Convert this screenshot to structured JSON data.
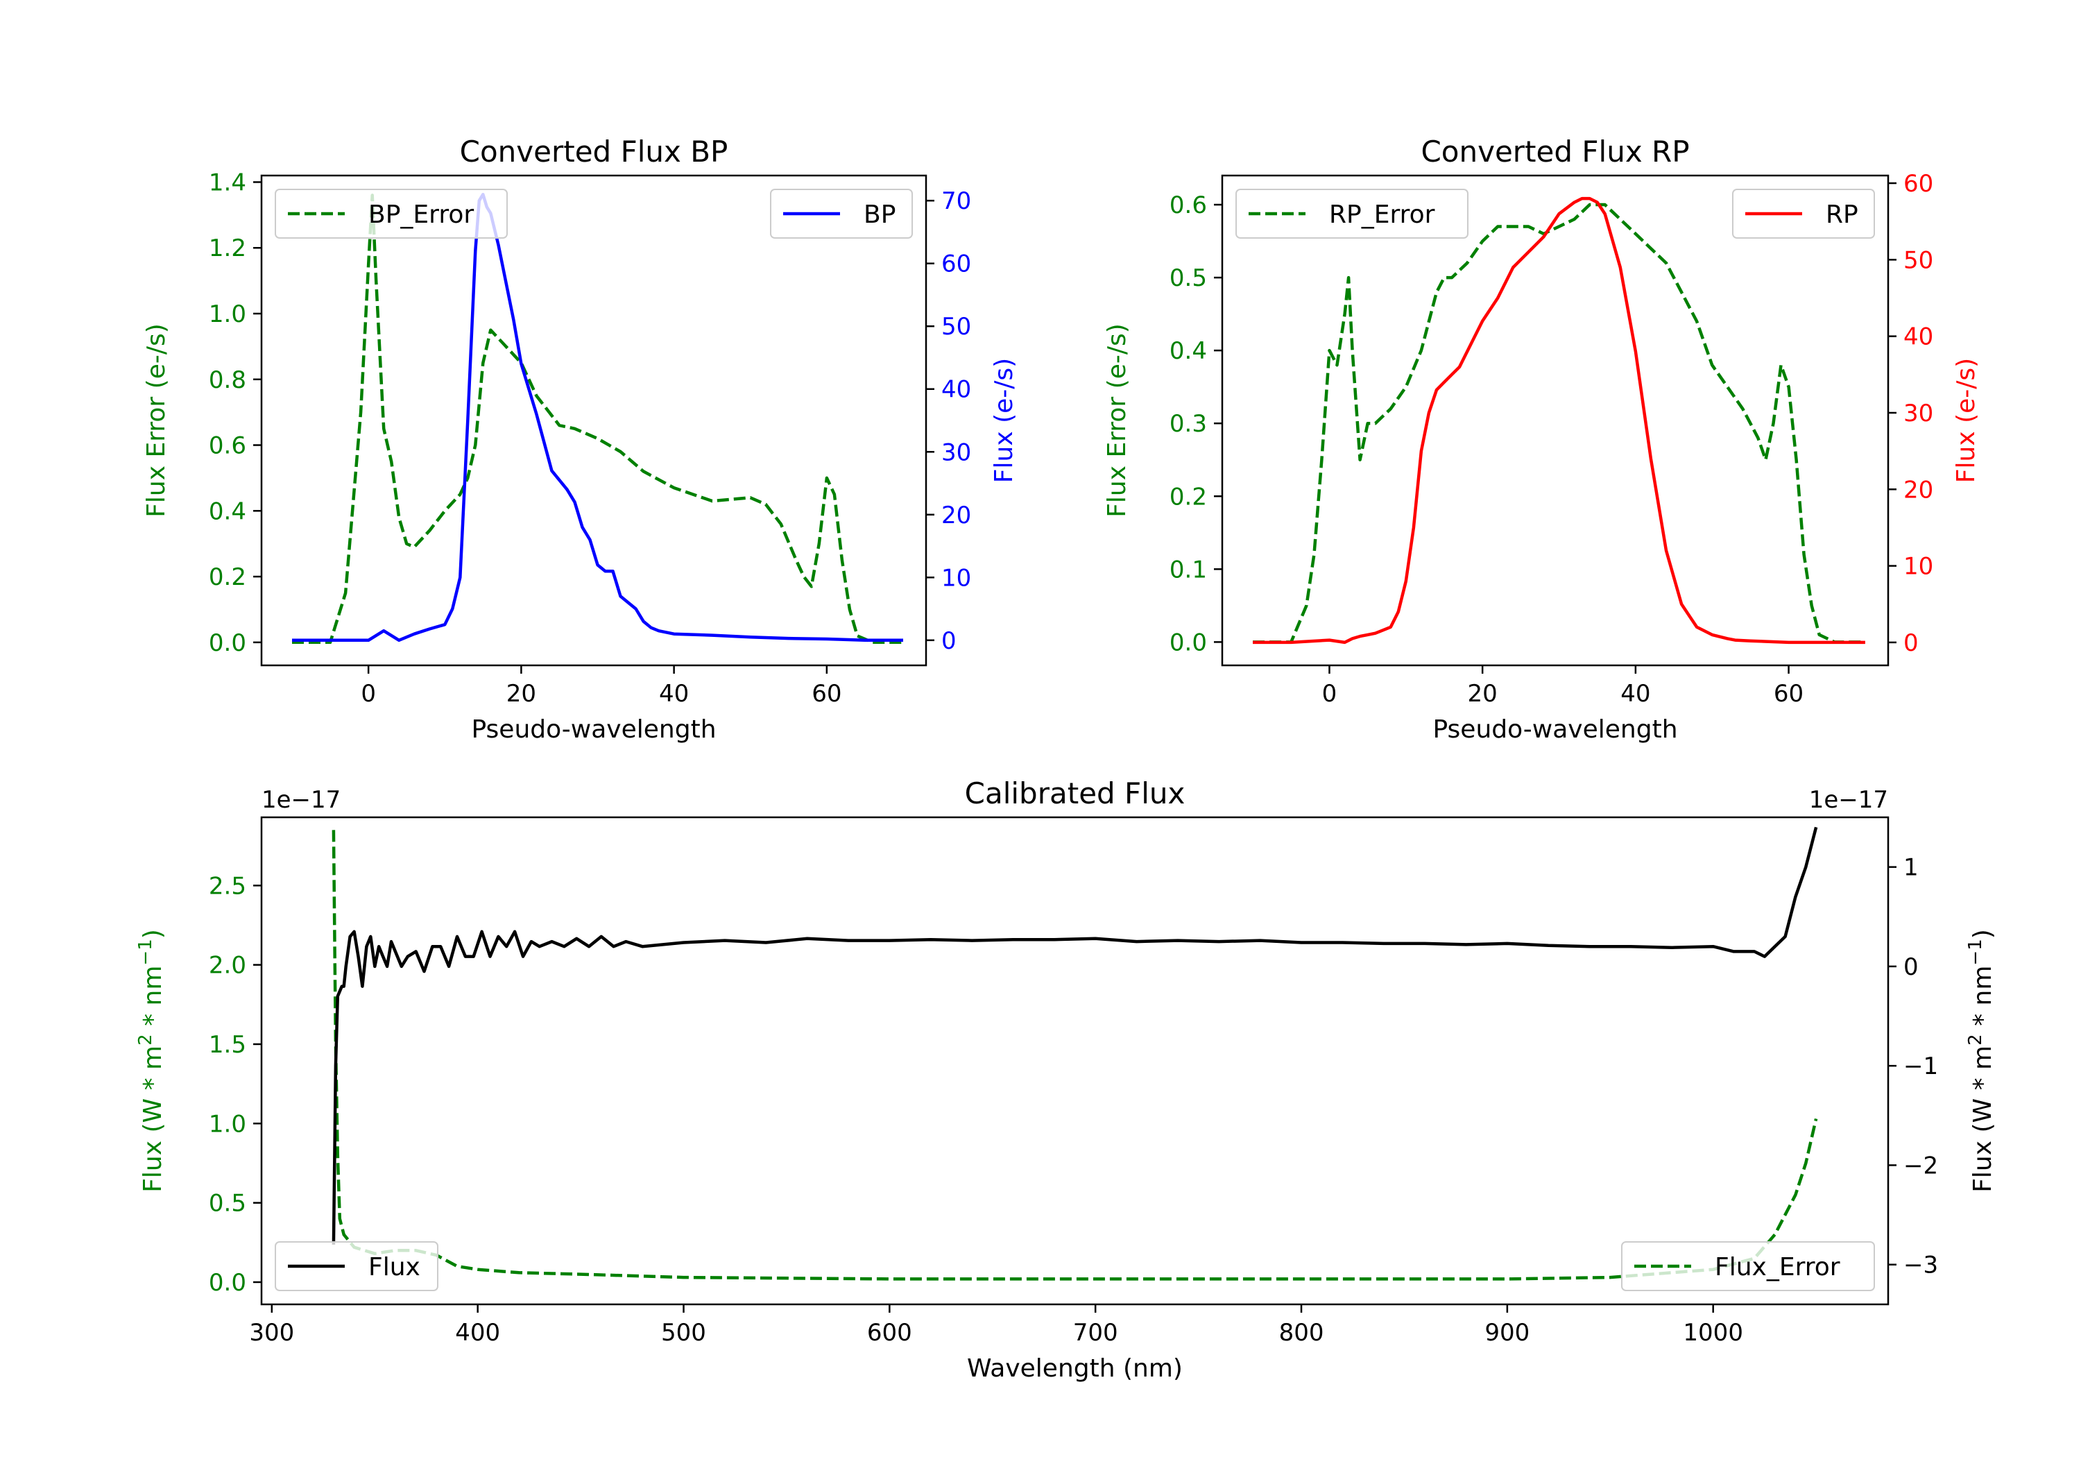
{
  "figure": {
    "background": "#ffffff"
  },
  "colors": {
    "green": "#008000",
    "blue": "#0000ff",
    "red": "#ff0000",
    "black": "#000000"
  },
  "chart_data": [
    {
      "id": "bp",
      "type": "line",
      "title": "Converted Flux BP",
      "xlabel": "Pseudo-wavelength",
      "ylabel_left": "Flux Error (e-/s)",
      "ylabel_right": "Flux (e-/s)",
      "xlim": [
        -14,
        73
      ],
      "ylim_left": [
        -0.07,
        1.42
      ],
      "ylim_right": [
        -4,
        74
      ],
      "xticks": [
        0,
        20,
        40,
        60
      ],
      "yticks_left": [
        0.0,
        0.2,
        0.4,
        0.6,
        0.8,
        1.0,
        1.2,
        1.4
      ],
      "yticks_left_labels": [
        "0.0",
        "0.2",
        "0.4",
        "0.6",
        "0.8",
        "1.0",
        "1.2",
        "1.4"
      ],
      "yticks_right": [
        0,
        10,
        20,
        30,
        40,
        50,
        60,
        70
      ],
      "yticks_right_labels": [
        "0",
        "10",
        "20",
        "30",
        "40",
        "50",
        "60",
        "70"
      ],
      "legend_left": {
        "label": "BP_Error",
        "position": "upper-left",
        "style": "dashed",
        "color": "#008000"
      },
      "legend_right": {
        "label": "BP",
        "position": "upper-right",
        "style": "solid",
        "color": "#0000ff"
      },
      "series": [
        {
          "name": "BP_Error",
          "axis": "left",
          "color": "#008000",
          "style": "dashed",
          "x": [
            -10,
            -5,
            -3,
            -1,
            0,
            0.5,
            1,
            2,
            3,
            4,
            5,
            6,
            8,
            10,
            12,
            13,
            14,
            15,
            16,
            18,
            20,
            22,
            25,
            27,
            30,
            33,
            36,
            40,
            45,
            50,
            52,
            54,
            56,
            57,
            58,
            59,
            60,
            61,
            62,
            63,
            64,
            66,
            70
          ],
          "y": [
            0.0,
            0.0,
            0.15,
            0.7,
            1.15,
            1.36,
            1.1,
            0.65,
            0.55,
            0.38,
            0.3,
            0.29,
            0.34,
            0.4,
            0.45,
            0.5,
            0.6,
            0.85,
            0.95,
            0.9,
            0.85,
            0.75,
            0.66,
            0.65,
            0.62,
            0.58,
            0.52,
            0.47,
            0.43,
            0.44,
            0.42,
            0.36,
            0.25,
            0.2,
            0.17,
            0.3,
            0.5,
            0.45,
            0.25,
            0.1,
            0.02,
            0.0,
            0.0
          ]
        },
        {
          "name": "BP",
          "axis": "right",
          "color": "#0000ff",
          "style": "solid",
          "x": [
            -10,
            -5,
            0,
            2,
            4,
            6,
            8,
            10,
            11,
            12,
            13,
            14,
            14.5,
            15,
            15.5,
            16,
            17,
            18,
            19,
            20,
            22,
            24,
            26,
            27,
            28,
            29,
            30,
            31,
            32,
            33,
            34,
            35,
            36,
            37,
            38,
            40,
            45,
            50,
            55,
            60,
            65,
            70
          ],
          "y": [
            0,
            0,
            0,
            1.5,
            0,
            1,
            1.8,
            2.5,
            5,
            10,
            35,
            62,
            70,
            71,
            69,
            68,
            63,
            57,
            51,
            44,
            36,
            27,
            24,
            22,
            18,
            16,
            12,
            11,
            11,
            7,
            6,
            5,
            3,
            2,
            1.5,
            1,
            0.8,
            0.5,
            0.3,
            0.2,
            0,
            0
          ]
        }
      ]
    },
    {
      "id": "rp",
      "type": "line",
      "title": "Converted Flux RP",
      "xlabel": "Pseudo-wavelength",
      "ylabel_left": "Flux Error (e-/s)",
      "ylabel_right": "Flux (e-/s)",
      "xlim": [
        -14,
        73
      ],
      "ylim_left": [
        -0.032,
        0.64
      ],
      "ylim_right": [
        -3,
        61
      ],
      "xticks": [
        0,
        20,
        40,
        60
      ],
      "yticks_left": [
        0.0,
        0.1,
        0.2,
        0.3,
        0.4,
        0.5,
        0.6
      ],
      "yticks_left_labels": [
        "0.0",
        "0.1",
        "0.2",
        "0.3",
        "0.4",
        "0.5",
        "0.6"
      ],
      "yticks_right": [
        0,
        10,
        20,
        30,
        40,
        50,
        60
      ],
      "yticks_right_labels": [
        "0",
        "10",
        "20",
        "30",
        "40",
        "50",
        "60"
      ],
      "legend_left": {
        "label": "RP_Error",
        "position": "upper-left",
        "style": "dashed",
        "color": "#008000"
      },
      "legend_right": {
        "label": "RP",
        "position": "upper-right",
        "style": "solid",
        "color": "#ff0000"
      },
      "series": [
        {
          "name": "RP_Error",
          "axis": "left",
          "color": "#008000",
          "style": "dashed",
          "x": [
            -10,
            -5,
            -3,
            -2,
            -1,
            0,
            1,
            2,
            2.5,
            3,
            4,
            5,
            6,
            8,
            10,
            12,
            14,
            15,
            16,
            18,
            20,
            22,
            24,
            26,
            28,
            30,
            32,
            34,
            36,
            38,
            40,
            42,
            44,
            46,
            48,
            50,
            52,
            54,
            55,
            56,
            57,
            58,
            59,
            60,
            61,
            62,
            63,
            64,
            66,
            70
          ],
          "y": [
            0.0,
            0.0,
            0.05,
            0.12,
            0.25,
            0.4,
            0.38,
            0.45,
            0.5,
            0.4,
            0.25,
            0.3,
            0.3,
            0.32,
            0.35,
            0.4,
            0.48,
            0.5,
            0.5,
            0.52,
            0.55,
            0.57,
            0.57,
            0.57,
            0.56,
            0.57,
            0.58,
            0.6,
            0.6,
            0.58,
            0.56,
            0.54,
            0.52,
            0.48,
            0.44,
            0.38,
            0.35,
            0.32,
            0.3,
            0.28,
            0.25,
            0.3,
            0.38,
            0.35,
            0.25,
            0.12,
            0.05,
            0.01,
            0.0,
            0.0
          ]
        },
        {
          "name": "RP",
          "axis": "right",
          "color": "#ff0000",
          "style": "solid",
          "x": [
            -10,
            -5,
            0,
            2,
            3,
            4,
            5,
            6,
            7,
            8,
            9,
            10,
            11,
            12,
            13,
            14,
            15,
            16,
            17,
            18,
            19,
            20,
            22,
            24,
            26,
            28,
            30,
            32,
            33,
            34,
            35,
            36,
            38,
            40,
            42,
            44,
            46,
            48,
            50,
            52,
            53,
            55,
            60,
            65,
            70
          ],
          "y": [
            0,
            0,
            0.3,
            0,
            0.5,
            0.8,
            1,
            1.2,
            1.6,
            2,
            4,
            8,
            15,
            25,
            30,
            33,
            34,
            35,
            36,
            38,
            40,
            42,
            45,
            49,
            51,
            53,
            56,
            57.5,
            58,
            58,
            57.5,
            56,
            49,
            38,
            24,
            12,
            5,
            2,
            1,
            0.5,
            0.3,
            0.2,
            0,
            0,
            0
          ]
        }
      ]
    },
    {
      "id": "cal",
      "type": "line",
      "title": "Calibrated Flux",
      "xlabel": "Wavelength (nm)",
      "ylabel_left_parts": [
        "Flux (W * m",
        "2",
        " * nm",
        "−1",
        ")"
      ],
      "ylabel_right_parts": [
        "Flux (W * m",
        "2",
        " * nm",
        "−1",
        ")"
      ],
      "offset_left": "1e−17",
      "offset_right": "1e−17",
      "xlim": [
        295,
        1085
      ],
      "ylim_left": [
        -0.14,
        2.93
      ],
      "ylim_right": [
        -3.4,
        1.5
      ],
      "xticks": [
        300,
        400,
        500,
        600,
        700,
        800,
        900,
        1000
      ],
      "yticks_left": [
        0.0,
        0.5,
        1.0,
        1.5,
        2.0,
        2.5
      ],
      "yticks_left_labels": [
        "0.0",
        "0.5",
        "1.0",
        "1.5",
        "2.0",
        "2.5"
      ],
      "yticks_right": [
        -3,
        -2,
        -1,
        0,
        1
      ],
      "yticks_right_labels": [
        "−3",
        "−2",
        "−1",
        "0",
        "1"
      ],
      "legend_left": {
        "label": "Flux",
        "position": "lower-left",
        "style": "solid",
        "color": "#000000"
      },
      "legend_right": {
        "label": "Flux_Error",
        "position": "lower-right",
        "style": "dashed",
        "color": "#008000"
      },
      "series": [
        {
          "name": "Flux_Error",
          "axis": "left",
          "color": "#008000",
          "style": "dashed",
          "x": [
            330,
            331,
            332,
            333,
            335,
            340,
            350,
            360,
            370,
            380,
            390,
            400,
            420,
            450,
            500,
            600,
            700,
            800,
            900,
            950,
            1000,
            1020,
            1030,
            1040,
            1045,
            1050
          ],
          "y": [
            2.85,
            1.5,
            0.8,
            0.4,
            0.3,
            0.22,
            0.18,
            0.2,
            0.2,
            0.17,
            0.1,
            0.08,
            0.06,
            0.05,
            0.03,
            0.02,
            0.02,
            0.02,
            0.02,
            0.03,
            0.08,
            0.15,
            0.3,
            0.55,
            0.75,
            1.03
          ]
        },
        {
          "name": "Flux",
          "axis": "right",
          "color": "#000000",
          "style": "solid",
          "x": [
            330,
            331,
            332,
            333,
            334,
            335,
            336,
            338,
            340,
            342,
            344,
            346,
            348,
            350,
            352,
            354,
            356,
            358,
            360,
            363,
            366,
            370,
            374,
            378,
            382,
            386,
            390,
            394,
            398,
            402,
            406,
            410,
            414,
            418,
            422,
            426,
            430,
            436,
            442,
            448,
            454,
            460,
            466,
            472,
            480,
            490,
            500,
            520,
            540,
            560,
            580,
            600,
            620,
            640,
            660,
            680,
            700,
            720,
            740,
            760,
            780,
            800,
            820,
            840,
            860,
            880,
            900,
            920,
            940,
            960,
            980,
            1000,
            1010,
            1020,
            1025,
            1030,
            1035,
            1040,
            1045,
            1050
          ],
          "y": [
            -2.8,
            -1,
            -0.3,
            -0.25,
            -0.2,
            -0.2,
            0.0,
            0.3,
            0.35,
            0.1,
            -0.2,
            0.2,
            0.3,
            0.0,
            0.2,
            0.1,
            0.0,
            0.25,
            0.15,
            0.0,
            0.1,
            0.15,
            -0.05,
            0.2,
            0.2,
            0.0,
            0.3,
            0.1,
            0.1,
            0.35,
            0.1,
            0.3,
            0.2,
            0.35,
            0.1,
            0.25,
            0.2,
            0.25,
            0.2,
            0.28,
            0.2,
            0.3,
            0.2,
            0.25,
            0.2,
            0.22,
            0.24,
            0.26,
            0.24,
            0.28,
            0.26,
            0.26,
            0.27,
            0.26,
            0.27,
            0.27,
            0.28,
            0.25,
            0.26,
            0.25,
            0.26,
            0.24,
            0.24,
            0.23,
            0.23,
            0.22,
            0.23,
            0.21,
            0.2,
            0.2,
            0.19,
            0.2,
            0.15,
            0.15,
            0.1,
            0.2,
            0.3,
            0.7,
            1.0,
            1.4
          ]
        }
      ]
    }
  ]
}
